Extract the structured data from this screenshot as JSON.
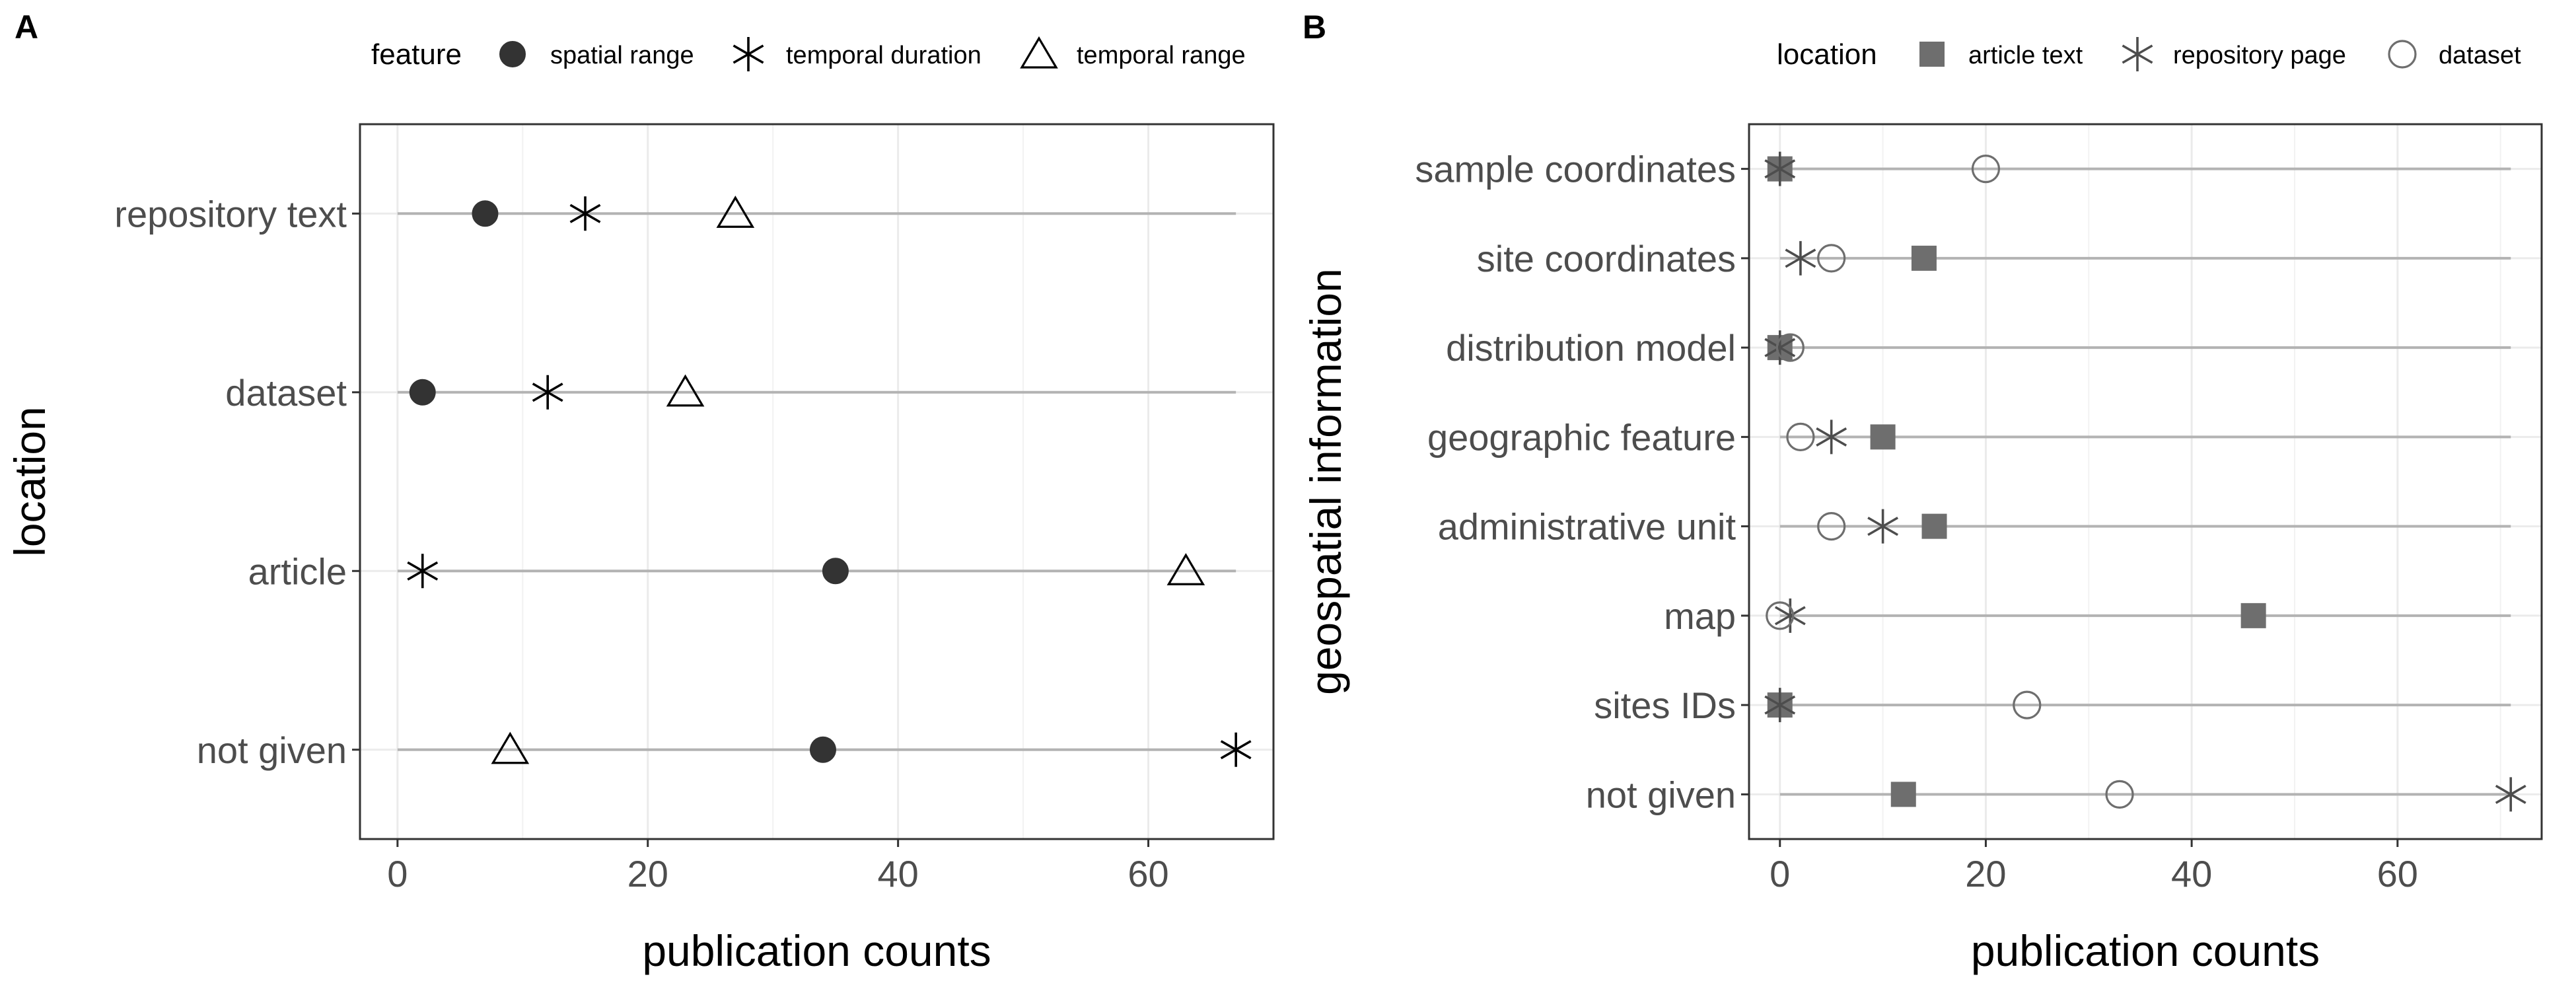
{
  "chart_data": [
    {
      "type": "scatter",
      "panel": "A",
      "xlabel": "publication counts",
      "ylabel": "location",
      "xlim": [
        -3,
        70
      ],
      "x_ticks": [
        0,
        20,
        40,
        60
      ],
      "x_range_line": [
        0,
        67
      ],
      "categories": [
        "repository text",
        "dataset",
        "article",
        "not given"
      ],
      "legend": {
        "title": "feature",
        "position": "top"
      },
      "grid": true,
      "series": [
        {
          "name": "spatial range",
          "shape": "filled-circle",
          "color": "#333333",
          "values": [
            7,
            2,
            35,
            34
          ]
        },
        {
          "name": "temporal duration",
          "shape": "asterisk",
          "color": "#000000",
          "values": [
            15,
            12,
            2,
            67
          ]
        },
        {
          "name": "temporal range",
          "shape": "open-triangle",
          "color": "#000000",
          "values": [
            27,
            23,
            63,
            9
          ]
        }
      ]
    },
    {
      "type": "scatter",
      "panel": "B",
      "xlabel": "publication counts",
      "ylabel": "geospatial information",
      "xlim": [
        -3,
        74
      ],
      "x_ticks": [
        0,
        20,
        40,
        60
      ],
      "x_range_line": [
        0,
        71
      ],
      "categories": [
        "sample coordinates",
        "site coordinates",
        "distribution model",
        "geographic feature",
        "administrative unit",
        "map",
        "sites IDs",
        "not given"
      ],
      "legend": {
        "title": "location",
        "position": "top"
      },
      "grid": true,
      "series": [
        {
          "name": "article text",
          "shape": "filled-square",
          "color": "#6e6e6e",
          "values": [
            0,
            14,
            0,
            10,
            15,
            46,
            0,
            12
          ]
        },
        {
          "name": "repository page",
          "shape": "asterisk",
          "color": "#4d4d4d",
          "values": [
            0,
            2,
            0,
            5,
            10,
            1,
            0,
            71
          ]
        },
        {
          "name": "dataset",
          "shape": "open-circle",
          "color": "#6e6e6e",
          "values": [
            20,
            5,
            1,
            2,
            5,
            0,
            24,
            33
          ]
        }
      ]
    }
  ]
}
